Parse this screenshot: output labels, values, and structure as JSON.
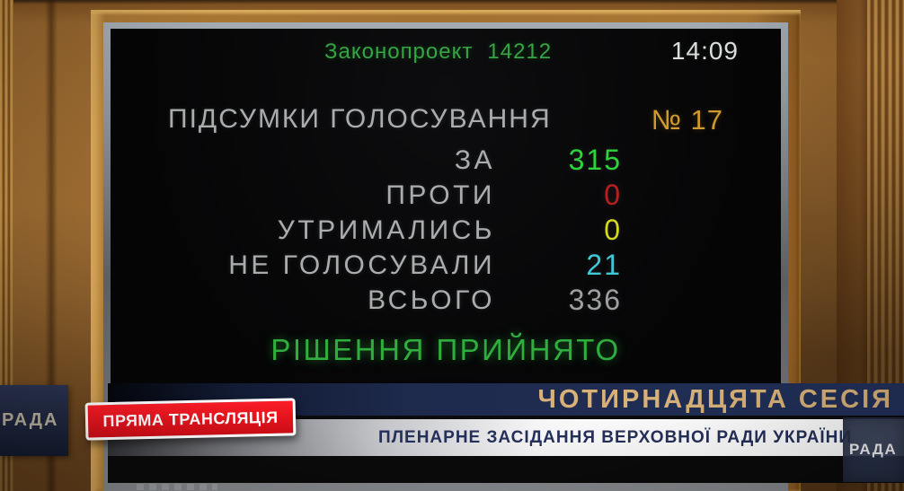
{
  "screen": {
    "bill_label": "Законопроект",
    "bill_number": "14212",
    "time": "14:09",
    "results_title": "ПІДСУМКИ ГОЛОСУВАННЯ",
    "vote_number": "№ 17",
    "rows": [
      {
        "label": "ЗА",
        "value": "315"
      },
      {
        "label": "ПРОТИ",
        "value": "0"
      },
      {
        "label": "УТРИМАЛИСЬ",
        "value": "0"
      },
      {
        "label": "НЕ ГОЛОСУВАЛИ",
        "value": "21"
      },
      {
        "label": "ВСЬОГО",
        "value": "336"
      }
    ],
    "decision": "РІШЕННЯ ПРИЙНЯТО"
  },
  "overlay": {
    "session_title": "ЧОТИРНАДЦЯТА СЕСІЯ",
    "subtitle": "ПЛЕНАРНЕ ЗАСІДАННЯ ВЕРХОВНОЇ РАДИ УКРАЇНИ",
    "live_badge": "ПРЯМА ТРАНСЛЯЦІЯ",
    "channel_logo_left": "РАДА",
    "channel_logo_corner": "РАДА"
  },
  "colors": {
    "bill_green": "#35a544",
    "time_white": "#dcdddd",
    "label_gray": "#aaacae",
    "vote_no_orange": "#cf9a2e",
    "for_green": "#2ed33a",
    "against_red": "#bb1e1e",
    "abstained_yellow": "#d6d81f",
    "not_voted_cyan": "#3fc8d8",
    "total_gray": "#9d9fa1",
    "decision_green": "#2fae3d",
    "banner_gold": "#d7b178",
    "subtitle_navy": "#25305a"
  }
}
